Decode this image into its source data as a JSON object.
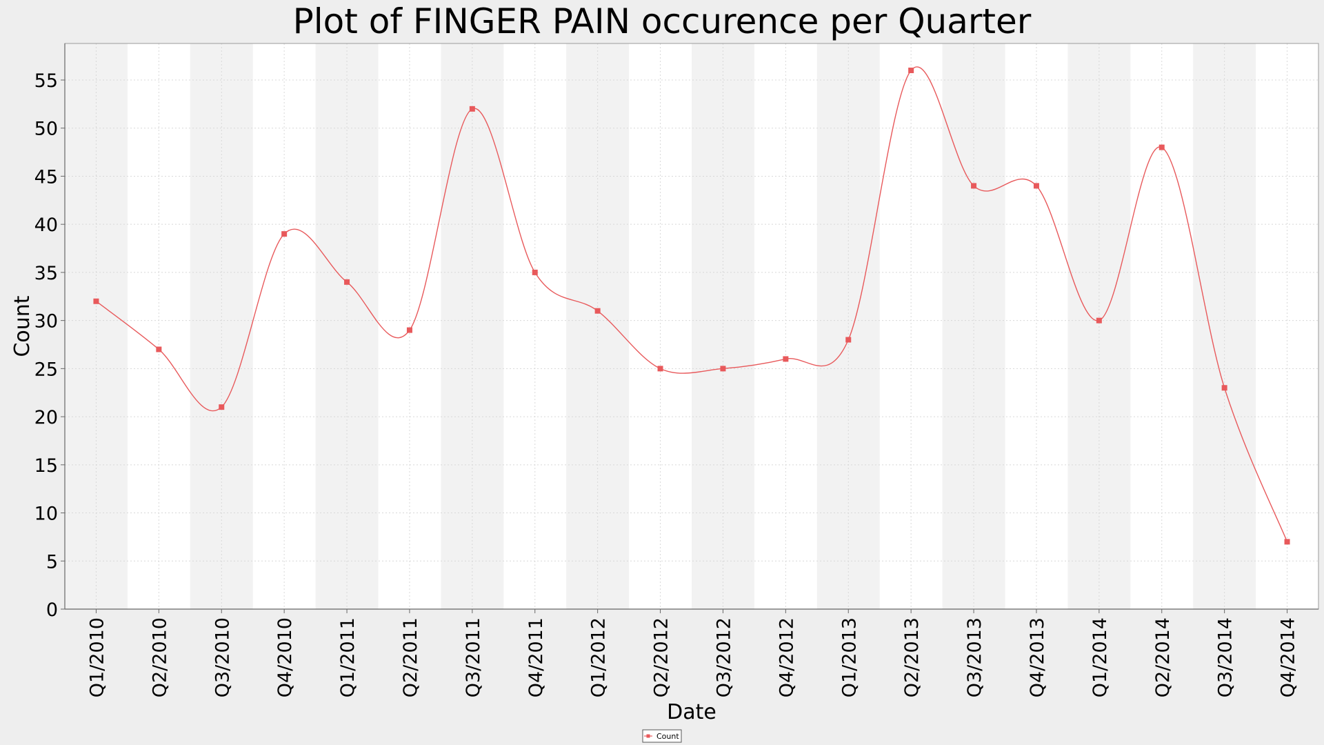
{
  "chart_data": {
    "type": "line",
    "title": "Plot of FINGER PAIN occurence per Quarter",
    "xlabel": "Date",
    "ylabel": "Count",
    "ylim": [
      0,
      58.8
    ],
    "yticks": [
      0,
      5,
      10,
      15,
      20,
      25,
      30,
      35,
      40,
      45,
      50,
      55
    ],
    "grid": true,
    "alternating_bands": true,
    "legend_position": "bottom-center",
    "categories": [
      "Q1/2010",
      "Q2/2010",
      "Q3/2010",
      "Q4/2010",
      "Q1/2011",
      "Q2/2011",
      "Q3/2011",
      "Q4/2011",
      "Q1/2012",
      "Q2/2012",
      "Q3/2012",
      "Q4/2012",
      "Q1/2013",
      "Q2/2013",
      "Q3/2013",
      "Q4/2013",
      "Q1/2014",
      "Q2/2014",
      "Q3/2014",
      "Q4/2014"
    ],
    "series": [
      {
        "name": "Count",
        "color": "#e8595b",
        "values": [
          32,
          27,
          21,
          39,
          34,
          29,
          52,
          35,
          31,
          25,
          25,
          26,
          28,
          56,
          44,
          44,
          30,
          48,
          23,
          7
        ]
      }
    ]
  }
}
